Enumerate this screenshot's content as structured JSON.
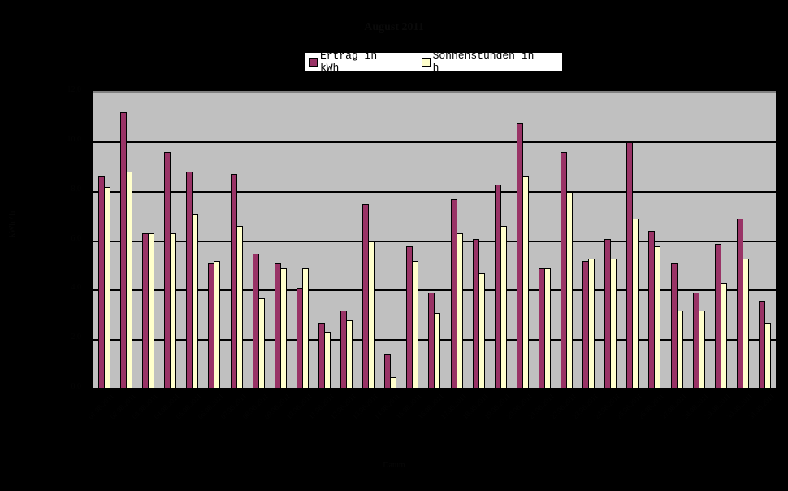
{
  "chart_data": {
    "type": "bar",
    "title": "August 2011",
    "xlabel": "Datum",
    "ylabel": "kWh / h",
    "ylim": [
      0,
      12
    ],
    "yticks": [
      "0,0",
      "2,0",
      "4,0",
      "6,0",
      "8,0",
      "10,0",
      "12,0"
    ],
    "grid": true,
    "legend_position": "top",
    "categories": [
      "01.08.2011",
      "02.08.2011",
      "03.08.2011",
      "04.08.2011",
      "05.08.2011",
      "06.08.2011",
      "07.08.2011",
      "08.08.2011",
      "09.08.2011",
      "10.08.2011",
      "11.08.2011",
      "12.08.2011",
      "13.08.2011",
      "14.08.2011",
      "15.08.2011",
      "16.08.2011",
      "17.08.2011",
      "18.08.2011",
      "19.08.2011",
      "20.08.2011",
      "21.08.2011",
      "22.08.2011",
      "23.08.2011",
      "24.08.2011",
      "25.08.2011",
      "26.08.2011",
      "27.08.2011",
      "28.08.2011",
      "29.08.2011",
      "30.08.2011",
      "31.08.2011"
    ],
    "series": [
      {
        "name": "Ertrag in kWh",
        "color": "#993366",
        "values": [
          8.5,
          11.1,
          6.2,
          9.5,
          8.7,
          5.0,
          8.6,
          5.4,
          5.0,
          4.0,
          2.6,
          3.1,
          7.4,
          1.3,
          5.7,
          3.8,
          7.6,
          6.0,
          8.2,
          10.7,
          4.8,
          9.5,
          5.1,
          6.0,
          9.9,
          6.3,
          5.0,
          3.8,
          5.8,
          6.8,
          3.5
        ]
      },
      {
        "name": "Sonnenstunden in h",
        "color": "#ffffcc",
        "values": [
          8.1,
          8.7,
          6.2,
          6.2,
          7.0,
          5.1,
          6.5,
          3.6,
          4.8,
          4.8,
          2.2,
          2.7,
          5.9,
          0.4,
          5.1,
          3.0,
          6.2,
          4.6,
          6.5,
          8.5,
          4.8,
          7.9,
          5.2,
          5.2,
          6.8,
          5.7,
          3.1,
          3.1,
          4.2,
          5.2,
          2.6
        ]
      }
    ]
  },
  "legend": {
    "items": [
      {
        "label": "Ertrag in kWh",
        "color": "#993366"
      },
      {
        "label": "Sonnenstunden in h",
        "color": "#ffffcc"
      }
    ]
  }
}
